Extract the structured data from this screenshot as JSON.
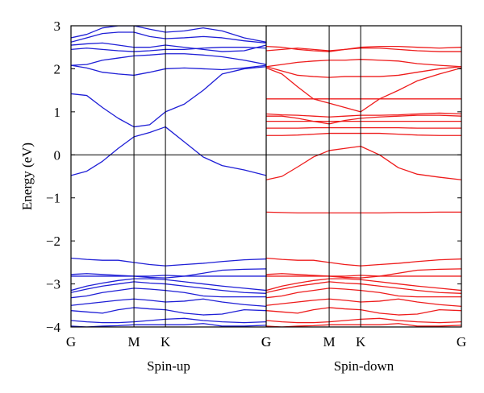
{
  "chart_data": {
    "type": "line",
    "ylabel": "Energy (eV)",
    "ylim": [
      -4,
      3
    ],
    "yticks": [
      3,
      2,
      1,
      0,
      -1,
      -2,
      -3,
      -4
    ],
    "ytick_labels": [
      "3",
      "2",
      "1",
      "0",
      "−1",
      "−2",
      "−3",
      "−4"
    ],
    "fermi_level": 0,
    "panels": [
      {
        "name": "Spin-up",
        "color": "#1f1fd6",
        "kpath_labels": [
          "G",
          "M",
          "K",
          "G"
        ],
        "kpath_positions": [
          0,
          1,
          1.5,
          3.1
        ],
        "x": [
          0,
          0.25,
          0.5,
          0.75,
          1,
          1.25,
          1.5,
          1.8,
          2.1,
          2.4,
          2.75,
          3.1
        ],
        "bands": [
          [
            -3.98,
            -4,
            -3.98,
            -3.97,
            -3.95,
            -3.95,
            -3.95,
            -3.95,
            -3.92,
            -3.98,
            -3.98,
            -3.96
          ],
          [
            -3.85,
            -3.88,
            -3.9,
            -3.9,
            -3.88,
            -3.85,
            -3.82,
            -3.8,
            -3.85,
            -3.88,
            -3.9,
            -3.88
          ],
          [
            -3.62,
            -3.65,
            -3.68,
            -3.6,
            -3.55,
            -3.58,
            -3.6,
            -3.68,
            -3.72,
            -3.7,
            -3.6,
            -3.62
          ],
          [
            -3.5,
            -3.46,
            -3.42,
            -3.38,
            -3.35,
            -3.38,
            -3.42,
            -3.4,
            -3.35,
            -3.42,
            -3.48,
            -3.52
          ],
          [
            -3.32,
            -3.28,
            -3.2,
            -3.15,
            -3.1,
            -3.12,
            -3.15,
            -3.2,
            -3.28,
            -3.3,
            -3.3,
            -3.3
          ],
          [
            -3.2,
            -3.12,
            -3.05,
            -3,
            -2.95,
            -2.98,
            -3,
            -3.05,
            -3.1,
            -3.15,
            -3.2,
            -3.22
          ],
          [
            -3.15,
            -3.05,
            -2.98,
            -2.92,
            -2.88,
            -2.88,
            -2.9,
            -2.95,
            -3,
            -3.05,
            -3.1,
            -3.15
          ],
          [
            -2.82,
            -2.82,
            -2.82,
            -2.82,
            -2.82,
            -2.82,
            -2.8,
            -2.82,
            -2.82,
            -2.82,
            -2.82,
            -2.82
          ],
          [
            -2.78,
            -2.76,
            -2.78,
            -2.8,
            -2.82,
            -2.85,
            -2.86,
            -2.82,
            -2.75,
            -2.68,
            -2.66,
            -2.65
          ],
          [
            -2.4,
            -2.43,
            -2.45,
            -2.45,
            -2.5,
            -2.55,
            -2.58,
            -2.55,
            -2.52,
            -2.48,
            -2.44,
            -2.42
          ],
          [
            -0.48,
            -0.38,
            -0.15,
            0.15,
            0.42,
            0.52,
            0.65,
            0.3,
            -0.05,
            -0.25,
            -0.35,
            -0.48
          ],
          [
            1.42,
            1.38,
            1.1,
            0.85,
            0.65,
            0.7,
            1,
            1.18,
            1.5,
            1.88,
            2,
            2.05
          ],
          [
            2.08,
            2.02,
            1.92,
            1.88,
            1.85,
            1.92,
            2,
            2.02,
            2,
            1.98,
            2.02,
            2.08
          ],
          [
            2.08,
            2.1,
            2.2,
            2.25,
            2.3,
            2.32,
            2.35,
            2.35,
            2.32,
            2.28,
            2.2,
            2.1
          ],
          [
            2.45,
            2.48,
            2.45,
            2.42,
            2.4,
            2.42,
            2.45,
            2.45,
            2.48,
            2.5,
            2.5,
            2.48
          ],
          [
            2.55,
            2.58,
            2.6,
            2.55,
            2.5,
            2.5,
            2.55,
            2.5,
            2.45,
            2.4,
            2.42,
            2.55
          ],
          [
            2.62,
            2.72,
            2.82,
            2.85,
            2.85,
            2.75,
            2.7,
            2.72,
            2.75,
            2.72,
            2.65,
            2.6
          ],
          [
            2.72,
            2.8,
            2.95,
            3,
            3,
            2.92,
            2.85,
            2.88,
            2.95,
            2.88,
            2.72,
            2.62
          ]
        ]
      },
      {
        "name": "Spin-down",
        "color": "#ee1c1c",
        "kpath_labels": [
          "G",
          "M",
          "K",
          "G"
        ],
        "kpath_positions": [
          0,
          1,
          1.5,
          3.1
        ],
        "x": [
          0,
          0.25,
          0.5,
          0.75,
          1,
          1.25,
          1.5,
          1.8,
          2.1,
          2.4,
          2.75,
          3.1
        ],
        "bands": [
          [
            -3.98,
            -4,
            -3.98,
            -3.97,
            -3.95,
            -3.95,
            -3.95,
            -3.95,
            -3.92,
            -3.98,
            -3.98,
            -3.96
          ],
          [
            -3.85,
            -3.88,
            -3.9,
            -3.9,
            -3.88,
            -3.85,
            -3.82,
            -3.8,
            -3.85,
            -3.88,
            -3.9,
            -3.88
          ],
          [
            -3.62,
            -3.65,
            -3.68,
            -3.6,
            -3.55,
            -3.58,
            -3.6,
            -3.68,
            -3.72,
            -3.7,
            -3.6,
            -3.62
          ],
          [
            -3.5,
            -3.46,
            -3.42,
            -3.38,
            -3.35,
            -3.38,
            -3.42,
            -3.4,
            -3.35,
            -3.42,
            -3.48,
            -3.52
          ],
          [
            -3.32,
            -3.28,
            -3.2,
            -3.15,
            -3.1,
            -3.12,
            -3.15,
            -3.2,
            -3.28,
            -3.3,
            -3.3,
            -3.3
          ],
          [
            -3.2,
            -3.12,
            -3.05,
            -3,
            -2.95,
            -2.98,
            -3,
            -3.05,
            -3.1,
            -3.15,
            -3.2,
            -3.22
          ],
          [
            -3.15,
            -3.05,
            -2.98,
            -2.92,
            -2.88,
            -2.88,
            -2.9,
            -2.95,
            -3,
            -3.05,
            -3.1,
            -3.15
          ],
          [
            -2.82,
            -2.82,
            -2.82,
            -2.82,
            -2.82,
            -2.82,
            -2.8,
            -2.82,
            -2.82,
            -2.82,
            -2.82,
            -2.82
          ],
          [
            -2.78,
            -2.76,
            -2.78,
            -2.8,
            -2.82,
            -2.85,
            -2.86,
            -2.82,
            -2.75,
            -2.68,
            -2.66,
            -2.65
          ],
          [
            -2.4,
            -2.43,
            -2.45,
            -2.45,
            -2.5,
            -2.55,
            -2.58,
            -2.55,
            -2.52,
            -2.48,
            -2.44,
            -2.42
          ],
          [
            -1.33,
            -1.34,
            -1.35,
            -1.35,
            -1.35,
            -1.35,
            -1.35,
            -1.35,
            -1.34,
            -1.34,
            -1.33,
            -1.33
          ],
          [
            -0.58,
            -0.5,
            -0.28,
            -0.05,
            0.1,
            0.15,
            0.2,
            0,
            -0.3,
            -0.45,
            -0.52,
            -0.58
          ],
          [
            0.45,
            0.45,
            0.46,
            0.48,
            0.5,
            0.5,
            0.5,
            0.5,
            0.48,
            0.46,
            0.45,
            0.45
          ],
          [
            0.62,
            0.62,
            0.62,
            0.63,
            0.63,
            0.63,
            0.63,
            0.63,
            0.63,
            0.62,
            0.62,
            0.62
          ],
          [
            0.78,
            0.78,
            0.78,
            0.78,
            0.78,
            0.78,
            0.78,
            0.78,
            0.78,
            0.78,
            0.78,
            0.78
          ],
          [
            0.9,
            0.9,
            0.85,
            0.78,
            0.72,
            0.8,
            0.85,
            0.88,
            0.9,
            0.92,
            0.92,
            0.9
          ],
          [
            0.95,
            0.93,
            0.92,
            0.9,
            0.88,
            0.9,
            0.92,
            0.92,
            0.93,
            0.95,
            0.97,
            0.95
          ],
          [
            1.3,
            1.3,
            1.3,
            1.3,
            1.3,
            1.3,
            1.3,
            1.3,
            1.3,
            1.3,
            1.3,
            1.3
          ],
          [
            2.02,
            1.88,
            1.58,
            1.3,
            1.2,
            1.1,
            1,
            1.3,
            1.5,
            1.72,
            1.88,
            2.02
          ],
          [
            2.05,
            1.95,
            1.85,
            1.82,
            1.8,
            1.82,
            1.82,
            1.82,
            1.85,
            1.92,
            2.0,
            2.05
          ],
          [
            2.05,
            2.1,
            2.15,
            2.18,
            2.2,
            2.2,
            2.22,
            2.2,
            2.18,
            2.12,
            2.08,
            2.05
          ],
          [
            2.42,
            2.45,
            2.48,
            2.45,
            2.42,
            2.45,
            2.48,
            2.48,
            2.45,
            2.42,
            2.4,
            2.4
          ],
          [
            2.52,
            2.5,
            2.45,
            2.42,
            2.4,
            2.45,
            2.5,
            2.52,
            2.52,
            2.5,
            2.48,
            2.5
          ]
        ]
      }
    ]
  }
}
